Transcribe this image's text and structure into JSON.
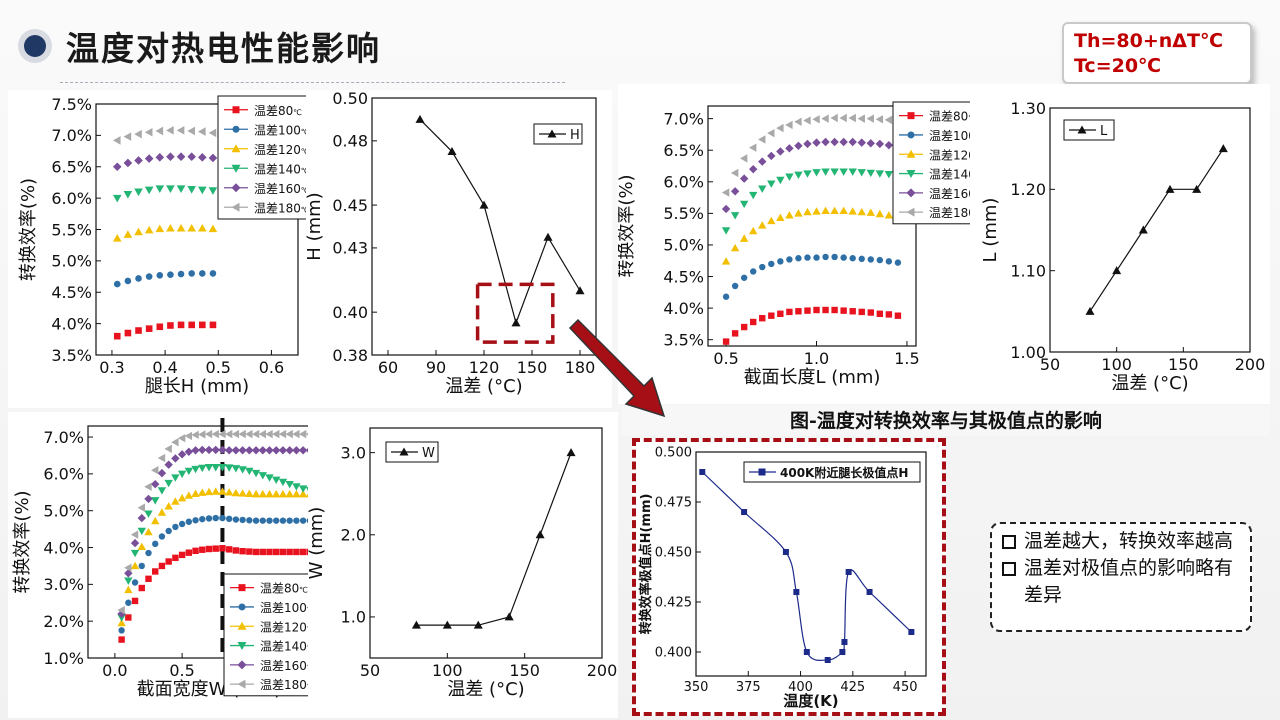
{
  "title": "温度对热电性能影响",
  "conditions": [
    "Th=80+nΔT℃",
    "Tc=20℃"
  ],
  "caption": "图-温度对转换效率与其极值点的影响",
  "conclusions": [
    "温差越大，转换效率越高",
    "温差对极值点的影响略有差异"
  ],
  "legend_labels": [
    "温差80℃",
    "温差100℃",
    "温差120℃",
    "温差140℃",
    "温差160℃",
    "温差180℃"
  ],
  "colors": {
    "s80": "#e8131f",
    "s100": "#2e6fa6",
    "s120": "#f2c000",
    "s140": "#22b573",
    "s160": "#7a4f9a",
    "s180": "#a9a9a9",
    "accent": "#a50f15",
    "title_dot": "#1f3864"
  },
  "chart_data": [
    {
      "id": "eff_vs_H",
      "type": "scatter",
      "xlabel": "腿长H (mm)",
      "ylabel": "转换效率(%)",
      "xlim": [
        0.27,
        0.65
      ],
      "ylim": [
        3.5,
        7.5
      ],
      "xticks": [
        "0.3",
        "0.4",
        "0.5",
        "0.6"
      ],
      "yticks": [
        "3.5%",
        "4.0%",
        "4.5%",
        "5.0%",
        "5.5%",
        "6.0%",
        "6.5%",
        "7.0%",
        "7.5%"
      ],
      "series": [
        {
          "name": "温差80℃",
          "x": [
            0.31,
            0.33,
            0.35,
            0.37,
            0.39,
            0.41,
            0.43,
            0.45,
            0.47,
            0.49
          ],
          "values": [
            3.8,
            3.85,
            3.89,
            3.92,
            3.95,
            3.97,
            3.98,
            3.98,
            3.98,
            3.98
          ]
        },
        {
          "name": "温差100℃",
          "x": [
            0.31,
            0.33,
            0.35,
            0.37,
            0.39,
            0.41,
            0.43,
            0.45,
            0.47,
            0.49
          ],
          "values": [
            4.63,
            4.68,
            4.72,
            4.75,
            4.77,
            4.78,
            4.79,
            4.8,
            4.8,
            4.8
          ]
        },
        {
          "name": "温差120℃",
          "x": [
            0.31,
            0.33,
            0.35,
            0.37,
            0.39,
            0.41,
            0.43,
            0.45,
            0.47,
            0.49
          ],
          "values": [
            5.36,
            5.42,
            5.46,
            5.49,
            5.51,
            5.52,
            5.52,
            5.52,
            5.52,
            5.51
          ]
        },
        {
          "name": "温差140℃",
          "x": [
            0.31,
            0.33,
            0.35,
            0.37,
            0.39,
            0.41,
            0.43,
            0.45,
            0.47,
            0.49
          ],
          "values": [
            6.0,
            6.06,
            6.1,
            6.13,
            6.15,
            6.15,
            6.15,
            6.14,
            6.13,
            6.12
          ]
        },
        {
          "name": "温差160℃",
          "x": [
            0.31,
            0.33,
            0.35,
            0.37,
            0.39,
            0.41,
            0.43,
            0.45,
            0.47,
            0.49
          ],
          "values": [
            6.5,
            6.56,
            6.6,
            6.63,
            6.65,
            6.66,
            6.66,
            6.66,
            6.65,
            6.64
          ]
        },
        {
          "name": "温差180℃",
          "x": [
            0.31,
            0.33,
            0.35,
            0.37,
            0.39,
            0.41,
            0.43,
            0.45,
            0.47,
            0.49
          ],
          "values": [
            6.92,
            6.98,
            7.02,
            7.05,
            7.07,
            7.08,
            7.08,
            7.07,
            7.06,
            7.04
          ]
        }
      ]
    },
    {
      "id": "H_vs_dT",
      "type": "line",
      "xlabel": "温差 (°C)",
      "ylabel": "H (mm)",
      "legend": "H",
      "xlim": [
        50,
        190
      ],
      "ylim": [
        0.38,
        0.5
      ],
      "xticks": [
        "60",
        "90",
        "120",
        "150",
        "180"
      ],
      "yticks": [
        "0.38",
        "0.40",
        "0.43",
        "0.45",
        "0.48",
        "0.50"
      ],
      "x": [
        80,
        100,
        120,
        140,
        160,
        180
      ],
      "values": [
        0.49,
        0.475,
        0.45,
        0.395,
        0.435,
        0.41
      ]
    },
    {
      "id": "eff_vs_L",
      "type": "scatter",
      "xlabel": "截面长度L (mm)",
      "ylabel": "转换效率(%)",
      "xlim": [
        0.4,
        1.55
      ],
      "ylim": [
        3.4,
        7.2
      ],
      "xticks": [
        "0.5",
        "1.0",
        "1.5"
      ],
      "yticks": [
        "3.5%",
        "4.0%",
        "4.5%",
        "5.0%",
        "5.5%",
        "6.0%",
        "6.5%",
        "7.0%"
      ],
      "series": [
        {
          "name": "温差80℃",
          "x": [
            0.5,
            0.55,
            0.6,
            0.65,
            0.7,
            0.75,
            0.8,
            0.85,
            0.9,
            0.95,
            1.0,
            1.05,
            1.1,
            1.15,
            1.2,
            1.25,
            1.3,
            1.35,
            1.4,
            1.45
          ],
          "values": [
            3.47,
            3.6,
            3.7,
            3.78,
            3.84,
            3.88,
            3.91,
            3.94,
            3.95,
            3.96,
            3.97,
            3.97,
            3.97,
            3.96,
            3.95,
            3.94,
            3.93,
            3.91,
            3.9,
            3.88
          ]
        },
        {
          "name": "温差100℃",
          "x": [
            0.5,
            0.55,
            0.6,
            0.65,
            0.7,
            0.75,
            0.8,
            0.85,
            0.9,
            0.95,
            1.0,
            1.05,
            1.1,
            1.15,
            1.2,
            1.25,
            1.3,
            1.35,
            1.4,
            1.45
          ],
          "values": [
            4.18,
            4.35,
            4.48,
            4.58,
            4.65,
            4.7,
            4.74,
            4.77,
            4.79,
            4.8,
            4.8,
            4.81,
            4.81,
            4.8,
            4.79,
            4.78,
            4.77,
            4.76,
            4.74,
            4.72
          ]
        },
        {
          "name": "温差120℃",
          "x": [
            0.5,
            0.55,
            0.6,
            0.65,
            0.7,
            0.75,
            0.8,
            0.85,
            0.9,
            0.95,
            1.0,
            1.05,
            1.1,
            1.15,
            1.2,
            1.25,
            1.3,
            1.35,
            1.4,
            1.45
          ],
          "values": [
            4.74,
            4.95,
            5.1,
            5.22,
            5.31,
            5.38,
            5.43,
            5.47,
            5.5,
            5.52,
            5.53,
            5.54,
            5.54,
            5.54,
            5.53,
            5.52,
            5.51,
            5.49,
            5.47,
            5.45
          ]
        },
        {
          "name": "温差140℃",
          "x": [
            0.5,
            0.55,
            0.6,
            0.65,
            0.7,
            0.75,
            0.8,
            0.85,
            0.9,
            0.95,
            1.0,
            1.05,
            1.1,
            1.15,
            1.2,
            1.25,
            1.3,
            1.35,
            1.4,
            1.45
          ],
          "values": [
            5.23,
            5.47,
            5.65,
            5.79,
            5.89,
            5.97,
            6.03,
            6.08,
            6.11,
            6.13,
            6.15,
            6.16,
            6.16,
            6.16,
            6.16,
            6.15,
            6.14,
            6.13,
            6.12,
            6.1
          ]
        },
        {
          "name": "温差160℃",
          "x": [
            0.5,
            0.55,
            0.6,
            0.65,
            0.7,
            0.75,
            0.8,
            0.85,
            0.9,
            0.95,
            1.0,
            1.05,
            1.1,
            1.15,
            1.2,
            1.25,
            1.3,
            1.35,
            1.4,
            1.45
          ],
          "values": [
            5.57,
            5.85,
            6.05,
            6.2,
            6.32,
            6.41,
            6.48,
            6.53,
            6.57,
            6.6,
            6.62,
            6.63,
            6.63,
            6.63,
            6.63,
            6.62,
            6.61,
            6.6,
            6.58,
            6.57
          ]
        },
        {
          "name": "温差180℃",
          "x": [
            0.5,
            0.55,
            0.6,
            0.65,
            0.7,
            0.75,
            0.8,
            0.85,
            0.9,
            0.95,
            1.0,
            1.05,
            1.1,
            1.15,
            1.2,
            1.25,
            1.3,
            1.35,
            1.4,
            1.45
          ],
          "values": [
            5.83,
            6.14,
            6.37,
            6.54,
            6.67,
            6.77,
            6.85,
            6.9,
            6.95,
            6.97,
            6.99,
            7.0,
            7.01,
            7.01,
            7.01,
            7.0,
            7.0,
            6.99,
            6.98,
            6.96
          ]
        }
      ]
    },
    {
      "id": "L_vs_dT",
      "type": "line",
      "xlabel": "温差 (°C)",
      "ylabel": "L (mm)",
      "legend": "L",
      "xlim": [
        50,
        200
      ],
      "ylim": [
        1.0,
        1.3
      ],
      "xticks": [
        "50",
        "100",
        "150",
        "200"
      ],
      "yticks": [
        "1.00",
        "1.10",
        "1.20",
        "1.30"
      ],
      "x": [
        80,
        100,
        120,
        140,
        160,
        180
      ],
      "values": [
        1.05,
        1.1,
        1.15,
        1.2,
        1.2,
        1.25
      ]
    },
    {
      "id": "eff_vs_W",
      "type": "scatter",
      "xlabel": "截面宽度W (mm)",
      "ylabel": "转换效率(%)",
      "xlim": [
        -0.2,
        1.6
      ],
      "ylim": [
        1.0,
        7.3
      ],
      "xticks": [
        "0.0",
        "0.5",
        "1.0"
      ],
      "yticks": [
        "1.0%",
        "2.0%",
        "3.0%",
        "4.0%",
        "5.0%",
        "6.0%",
        "7.0%"
      ],
      "marker_x": 0.8,
      "series": [
        {
          "name": "温差80℃",
          "x": [
            0.05,
            0.1,
            0.15,
            0.2,
            0.25,
            0.3,
            0.35,
            0.4,
            0.45,
            0.5,
            0.55,
            0.6,
            0.65,
            0.7,
            0.75,
            0.8,
            0.85,
            0.9,
            0.95,
            1.0,
            1.05,
            1.1,
            1.15,
            1.2,
            1.25,
            1.3,
            1.35,
            1.4,
            1.45,
            1.5
          ],
          "values": [
            1.5,
            2.1,
            2.55,
            2.9,
            3.15,
            3.35,
            3.5,
            3.62,
            3.72,
            3.8,
            3.86,
            3.91,
            3.94,
            3.96,
            3.97,
            3.98,
            3.95,
            3.92,
            3.9,
            3.89,
            3.88,
            3.88,
            3.88,
            3.88,
            3.88,
            3.88,
            3.88,
            3.88,
            3.88,
            3.88
          ]
        },
        {
          "name": "温差100℃",
          "x": [
            0.05,
            0.1,
            0.15,
            0.2,
            0.25,
            0.3,
            0.35,
            0.4,
            0.45,
            0.5,
            0.55,
            0.6,
            0.65,
            0.7,
            0.75,
            0.8,
            0.85,
            0.9,
            0.95,
            1.0,
            1.05,
            1.1,
            1.15,
            1.2,
            1.25,
            1.3,
            1.35,
            1.4,
            1.45,
            1.5
          ],
          "values": [
            1.75,
            2.5,
            3.05,
            3.5,
            3.85,
            4.1,
            4.3,
            4.45,
            4.56,
            4.64,
            4.7,
            4.74,
            4.77,
            4.79,
            4.8,
            4.8,
            4.78,
            4.76,
            4.75,
            4.74,
            4.73,
            4.73,
            4.73,
            4.73,
            4.73,
            4.73,
            4.73,
            4.73,
            4.73,
            4.73
          ]
        },
        {
          "name": "温差120℃",
          "x": [
            0.05,
            0.1,
            0.15,
            0.2,
            0.25,
            0.3,
            0.35,
            0.4,
            0.45,
            0.5,
            0.55,
            0.6,
            0.65,
            0.7,
            0.75,
            0.8,
            0.85,
            0.9,
            0.95,
            1.0,
            1.05,
            1.1,
            1.15,
            1.2,
            1.25,
            1.3,
            1.35,
            1.4,
            1.45,
            1.5
          ],
          "values": [
            1.95,
            2.85,
            3.5,
            4.02,
            4.42,
            4.72,
            4.95,
            5.12,
            5.25,
            5.34,
            5.41,
            5.46,
            5.49,
            5.51,
            5.52,
            5.52,
            5.5,
            5.48,
            5.47,
            5.46,
            5.45,
            5.45,
            5.45,
            5.45,
            5.45,
            5.45,
            5.45,
            5.45,
            5.45,
            5.45
          ]
        },
        {
          "name": "温差140℃",
          "x": [
            0.05,
            0.1,
            0.15,
            0.2,
            0.25,
            0.3,
            0.35,
            0.4,
            0.45,
            0.5,
            0.55,
            0.6,
            0.65,
            0.7,
            0.75,
            0.8,
            0.85,
            0.9,
            0.95,
            1.0,
            1.05,
            1.1,
            1.15,
            1.2,
            1.25,
            1.3,
            1.35,
            1.4,
            1.45,
            1.5
          ],
          "values": [
            2.1,
            3.1,
            3.85,
            4.45,
            4.92,
            5.28,
            5.55,
            5.75,
            5.9,
            6.0,
            6.08,
            6.13,
            6.16,
            6.18,
            6.18,
            6.18,
            6.17,
            6.15,
            6.12,
            6.08,
            6.02,
            5.96,
            5.9,
            5.84,
            5.78,
            5.72,
            5.66,
            5.6,
            5.56,
            5.52
          ]
        },
        {
          "name": "温差160℃",
          "x": [
            0.05,
            0.1,
            0.15,
            0.2,
            0.25,
            0.3,
            0.35,
            0.4,
            0.45,
            0.5,
            0.55,
            0.6,
            0.65,
            0.7,
            0.75,
            0.8,
            0.85,
            0.9,
            0.95,
            1.0,
            1.05,
            1.1,
            1.15,
            1.2,
            1.25,
            1.3,
            1.35,
            1.4,
            1.45,
            1.5
          ],
          "values": [
            2.2,
            3.3,
            4.12,
            4.8,
            5.32,
            5.72,
            6.02,
            6.25,
            6.42,
            6.53,
            6.6,
            6.64,
            6.65,
            6.65,
            6.65,
            6.65,
            6.64,
            6.64,
            6.64,
            6.64,
            6.64,
            6.64,
            6.64,
            6.64,
            6.64,
            6.64,
            6.64,
            6.64,
            6.64,
            6.64
          ]
        },
        {
          "name": "温差180℃",
          "x": [
            0.05,
            0.1,
            0.15,
            0.2,
            0.25,
            0.3,
            0.35,
            0.4,
            0.45,
            0.5,
            0.55,
            0.6,
            0.65,
            0.7,
            0.75,
            0.8,
            0.85,
            0.9,
            0.95,
            1.0,
            1.05,
            1.1,
            1.15,
            1.2,
            1.25,
            1.3,
            1.35,
            1.4,
            1.45,
            1.5
          ],
          "values": [
            2.3,
            3.45,
            4.35,
            5.08,
            5.65,
            6.1,
            6.43,
            6.68,
            6.86,
            6.97,
            7.03,
            7.06,
            7.07,
            7.08,
            7.08,
            7.08,
            7.08,
            7.08,
            7.08,
            7.08,
            7.08,
            7.08,
            7.08,
            7.08,
            7.08,
            7.08,
            7.08,
            7.08,
            7.08,
            7.08
          ]
        }
      ]
    },
    {
      "id": "W_vs_dT",
      "type": "line",
      "xlabel": "温差 (°C)",
      "ylabel": "W (mm)",
      "legend": "W",
      "xlim": [
        50,
        200
      ],
      "ylim": [
        0.5,
        3.3
      ],
      "xticks": [
        "50",
        "100",
        "150",
        "200"
      ],
      "yticks": [
        "1.0",
        "2.0",
        "3.0"
      ],
      "x": [
        80,
        100,
        120,
        140,
        160,
        180
      ],
      "values": [
        0.9,
        0.9,
        0.9,
        1.0,
        2.0,
        3.0
      ]
    },
    {
      "id": "H_vs_T",
      "type": "line",
      "xlabel": "温度(K)",
      "ylabel": "转换效率极值点H(mm)",
      "legend": "400K附近腿长极值点H",
      "xlim": [
        350,
        460
      ],
      "ylim": [
        0.388,
        0.5
      ],
      "xticks": [
        "350",
        "375",
        "400",
        "425",
        "450"
      ],
      "yticks": [
        "0.400",
        "0.425",
        "0.450",
        "0.475",
        "0.500"
      ],
      "x": [
        353,
        373,
        393,
        398,
        403,
        413,
        420,
        421,
        423,
        433,
        453
      ],
      "values": [
        0.49,
        0.47,
        0.45,
        0.43,
        0.4,
        0.396,
        0.4,
        0.405,
        0.44,
        0.43,
        0.41
      ]
    }
  ]
}
